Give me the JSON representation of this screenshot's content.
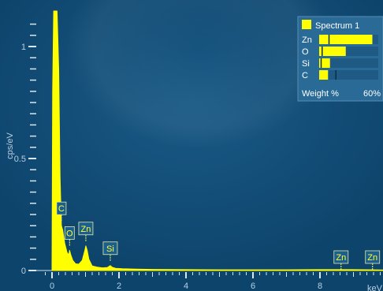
{
  "chart_data": {
    "type": "area",
    "xlabel": "keV",
    "ylabel": "cps/eV",
    "xlim": [
      -0.5,
      10
    ],
    "ylim": [
      0,
      1.2
    ],
    "x_ticks": [
      "0",
      "2",
      "4",
      "6",
      "8"
    ],
    "y_ticks": [
      "0",
      "0.5",
      "1"
    ],
    "grid": false,
    "series": [
      {
        "name": "Spectrum 1",
        "color": "#ffff00",
        "x": [
          0.0,
          0.02,
          0.05,
          0.08,
          0.1,
          0.15,
          0.2,
          0.24,
          0.28,
          0.32,
          0.38,
          0.45,
          0.5,
          0.525,
          0.56,
          0.62,
          0.7,
          0.8,
          0.9,
          0.98,
          1.01,
          1.05,
          1.1,
          1.2,
          1.35,
          1.5,
          1.65,
          1.74,
          1.8,
          1.9,
          2.1,
          2.5,
          3.0,
          4.0,
          5.0,
          6.0,
          7.0,
          8.0,
          8.6,
          8.9,
          9.57,
          9.9,
          10.0
        ],
        "y": [
          0.02,
          0.8,
          1.25,
          1.25,
          1.25,
          1.25,
          0.9,
          0.42,
          0.2,
          0.18,
          0.12,
          0.08,
          0.07,
          0.09,
          0.07,
          0.045,
          0.03,
          0.028,
          0.045,
          0.09,
          0.11,
          0.09,
          0.05,
          0.02,
          0.015,
          0.012,
          0.013,
          0.022,
          0.014,
          0.01,
          0.008,
          0.006,
          0.005,
          0.004,
          0.003,
          0.003,
          0.003,
          0.004,
          0.004,
          0.004,
          0.003,
          0.002,
          0.002
        ]
      }
    ],
    "peak_labels": [
      {
        "label": "C",
        "x": 0.28
      },
      {
        "label": "O",
        "x": 0.525
      },
      {
        "label": "Zn",
        "x": 1.01
      },
      {
        "label": "Si",
        "x": 1.74
      },
      {
        "label": "Zn",
        "x": 8.63
      },
      {
        "label": "Zn",
        "x": 9.57
      }
    ],
    "legend": {
      "position": "top-right",
      "title": "Spectrum 1",
      "footer_label": "Weight %",
      "footer_max": "60%",
      "max_value": 60,
      "elements": [
        {
          "name": "Zn",
          "value": 54,
          "marker": 10
        },
        {
          "name": "O",
          "value": 27,
          "marker": 3
        },
        {
          "name": "Si",
          "value": 11,
          "marker": 2
        },
        {
          "name": "C",
          "value": 9,
          "marker": 17
        }
      ]
    }
  }
}
